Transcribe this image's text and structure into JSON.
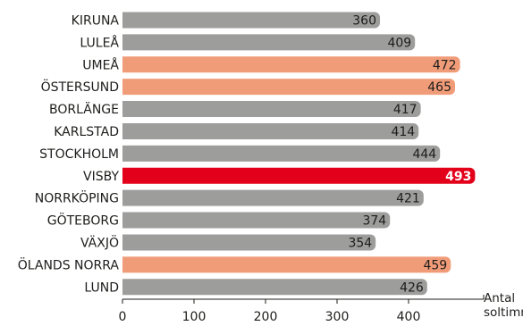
{
  "chart_data": {
    "type": "bar",
    "orientation": "horizontal",
    "categories": [
      "KIRUNA",
      "LULEÅ",
      "UMEÅ",
      "ÖSTERSUND",
      "BORLÄNGE",
      "KARLSTAD",
      "STOCKHOLM",
      "VISBY",
      "NORRKÖPING",
      "GÖTEBORG",
      "VÄXJÖ",
      "ÖLANDS NORRA",
      "LUND"
    ],
    "values": [
      360,
      409,
      472,
      465,
      417,
      414,
      444,
      493,
      421,
      374,
      354,
      459,
      426
    ],
    "colors": [
      "#9d9d9c",
      "#9d9d9c",
      "#f19c79",
      "#f19c79",
      "#9d9d9c",
      "#9d9d9c",
      "#9d9d9c",
      "#e2001a",
      "#9d9d9c",
      "#9d9d9c",
      "#9d9d9c",
      "#f19c79",
      "#9d9d9c"
    ],
    "x_label": "Antal soltimmar",
    "xlim": [
      0,
      505
    ],
    "xticks": [
      0,
      100,
      200,
      300,
      400
    ]
  }
}
